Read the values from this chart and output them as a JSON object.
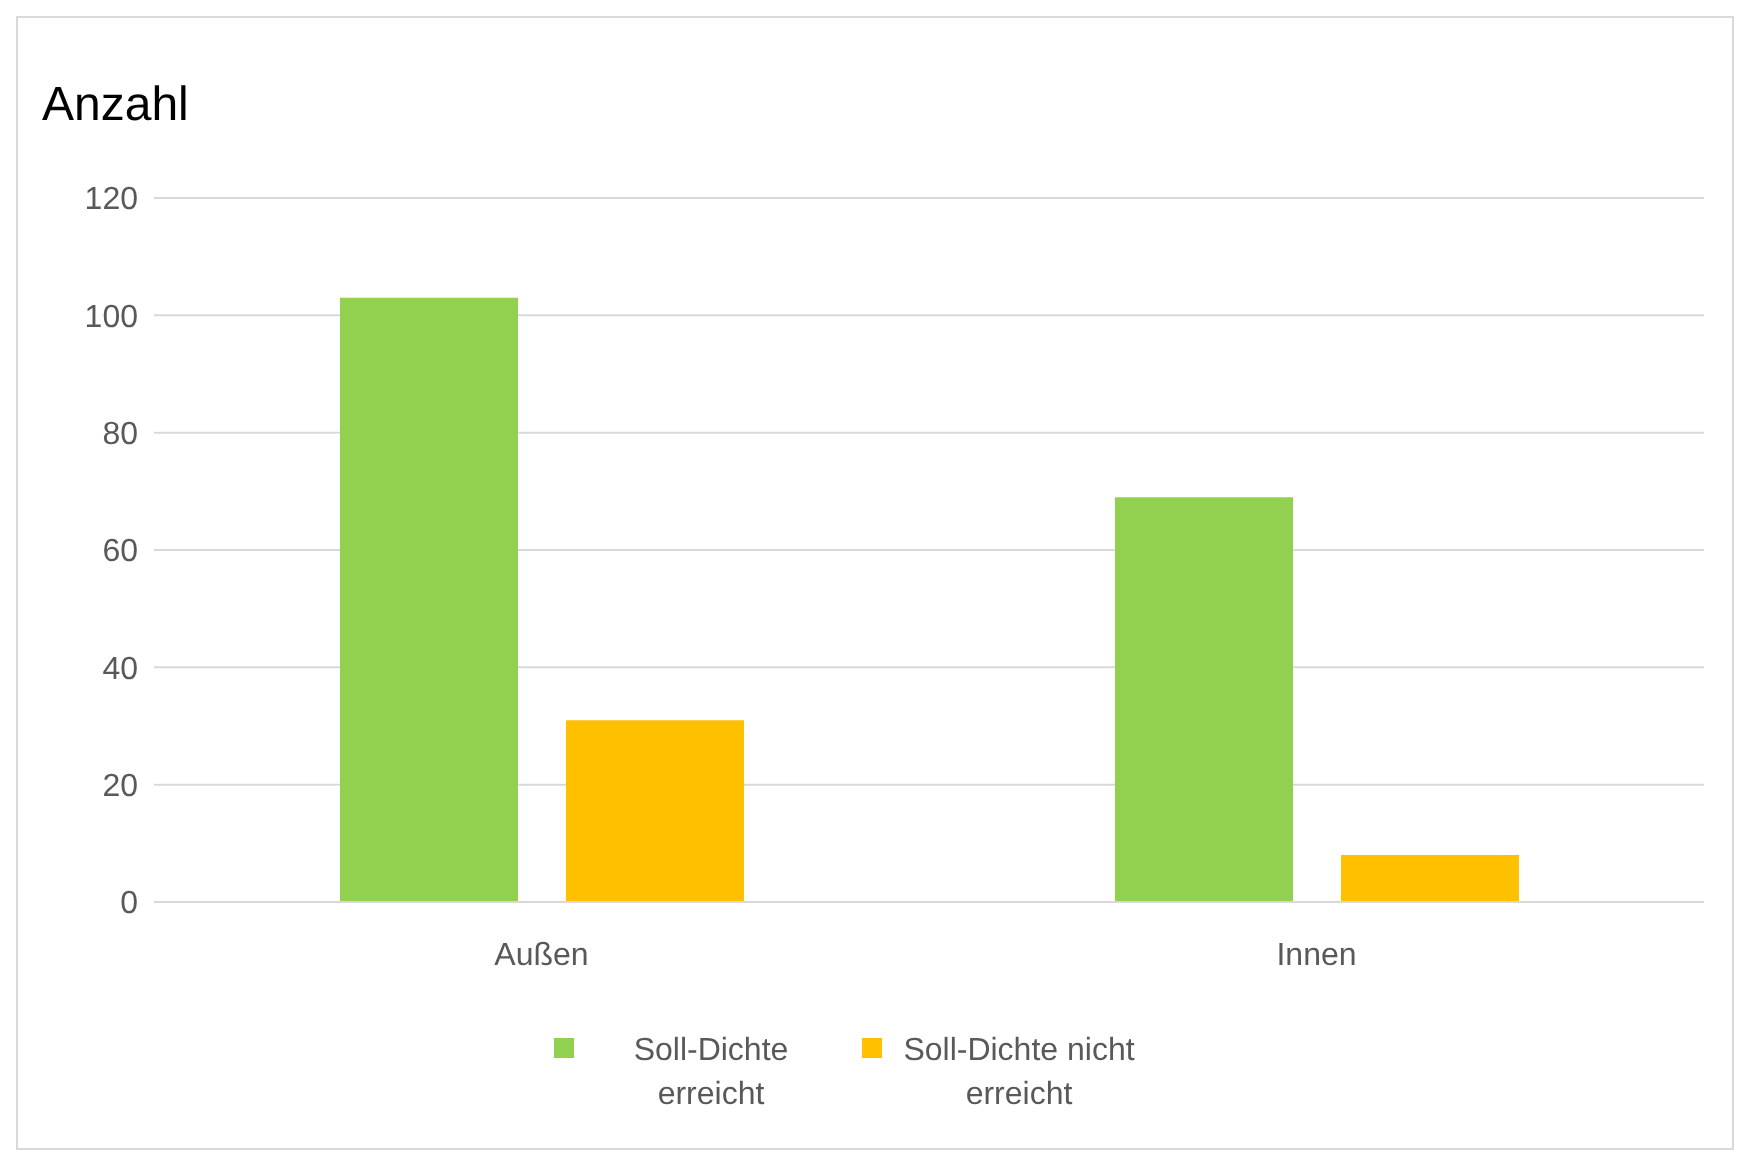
{
  "chart_data": {
    "type": "bar",
    "ylabel": "Anzahl",
    "categories": [
      "Außen",
      "Innen"
    ],
    "series": [
      {
        "name": "Soll-Dichte erreicht",
        "color": "#92d050",
        "values": [
          103,
          69
        ]
      },
      {
        "name": "Soll-Dichte nicht erreicht",
        "color": "#ffc000",
        "values": [
          31,
          8
        ]
      }
    ],
    "ylim": [
      0,
      120
    ],
    "yticks": [
      0,
      20,
      40,
      60,
      80,
      100,
      120
    ],
    "grid": "y",
    "legend": "bottom"
  }
}
